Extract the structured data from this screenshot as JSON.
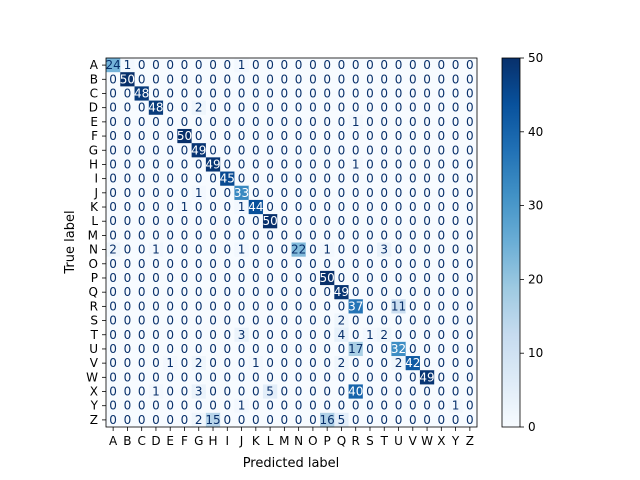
{
  "chart_data": {
    "type": "heatmap",
    "title": "",
    "xlabel": "Predicted label",
    "ylabel": "True label",
    "labels": [
      "A",
      "B",
      "C",
      "D",
      "E",
      "F",
      "G",
      "H",
      "I",
      "J",
      "K",
      "L",
      "M",
      "N",
      "O",
      "P",
      "Q",
      "R",
      "S",
      "T",
      "U",
      "V",
      "W",
      "X",
      "Y",
      "Z"
    ],
    "matrix": [
      [
        24,
        1,
        0,
        0,
        0,
        0,
        0,
        0,
        0,
        1,
        0,
        0,
        0,
        0,
        0,
        0,
        0,
        0,
        0,
        0,
        0,
        0,
        0,
        0,
        0,
        0
      ],
      [
        0,
        50,
        0,
        0,
        0,
        0,
        0,
        0,
        0,
        0,
        0,
        0,
        0,
        0,
        0,
        0,
        0,
        0,
        0,
        0,
        0,
        0,
        0,
        0,
        0,
        0
      ],
      [
        0,
        0,
        48,
        0,
        0,
        0,
        0,
        0,
        0,
        0,
        0,
        0,
        0,
        0,
        0,
        0,
        0,
        0,
        0,
        0,
        0,
        0,
        0,
        0,
        0,
        0
      ],
      [
        0,
        0,
        0,
        48,
        0,
        0,
        2,
        0,
        0,
        0,
        0,
        0,
        0,
        0,
        0,
        0,
        0,
        0,
        0,
        0,
        0,
        0,
        0,
        0,
        0,
        0
      ],
      [
        0,
        0,
        0,
        0,
        0,
        0,
        0,
        0,
        0,
        0,
        0,
        0,
        0,
        0,
        0,
        0,
        0,
        1,
        0,
        0,
        0,
        0,
        0,
        0,
        0,
        0
      ],
      [
        0,
        0,
        0,
        0,
        0,
        50,
        0,
        0,
        0,
        0,
        0,
        0,
        0,
        0,
        0,
        0,
        0,
        0,
        0,
        0,
        0,
        0,
        0,
        0,
        0,
        0
      ],
      [
        0,
        0,
        0,
        0,
        0,
        0,
        49,
        0,
        0,
        0,
        0,
        0,
        0,
        0,
        0,
        0,
        0,
        0,
        0,
        0,
        0,
        0,
        0,
        0,
        0,
        0
      ],
      [
        0,
        0,
        0,
        0,
        0,
        0,
        0,
        49,
        0,
        0,
        0,
        0,
        0,
        0,
        0,
        0,
        0,
        1,
        0,
        0,
        0,
        0,
        0,
        0,
        0,
        0
      ],
      [
        0,
        0,
        0,
        0,
        0,
        0,
        0,
        0,
        45,
        0,
        0,
        0,
        0,
        0,
        0,
        0,
        0,
        0,
        0,
        0,
        0,
        0,
        0,
        0,
        0,
        0
      ],
      [
        0,
        0,
        0,
        0,
        0,
        0,
        1,
        0,
        0,
        33,
        0,
        0,
        0,
        0,
        0,
        0,
        0,
        0,
        0,
        0,
        0,
        0,
        0,
        0,
        0,
        0
      ],
      [
        0,
        0,
        0,
        0,
        0,
        1,
        0,
        0,
        0,
        1,
        44,
        0,
        0,
        0,
        0,
        0,
        0,
        0,
        0,
        0,
        0,
        0,
        0,
        0,
        0,
        0
      ],
      [
        0,
        0,
        0,
        0,
        0,
        0,
        0,
        0,
        0,
        0,
        0,
        50,
        0,
        0,
        0,
        0,
        0,
        0,
        0,
        0,
        0,
        0,
        0,
        0,
        0,
        0
      ],
      [
        0,
        0,
        0,
        0,
        0,
        0,
        0,
        0,
        0,
        0,
        0,
        0,
        0,
        0,
        0,
        0,
        0,
        0,
        0,
        0,
        0,
        0,
        0,
        0,
        0,
        0
      ],
      [
        2,
        0,
        0,
        1,
        0,
        0,
        0,
        0,
        0,
        1,
        0,
        0,
        0,
        22,
        0,
        1,
        0,
        0,
        0,
        3,
        0,
        0,
        0,
        0,
        0,
        0
      ],
      [
        0,
        0,
        0,
        0,
        0,
        0,
        0,
        0,
        0,
        0,
        0,
        0,
        0,
        0,
        0,
        0,
        0,
        0,
        0,
        0,
        0,
        0,
        0,
        0,
        0,
        0
      ],
      [
        0,
        0,
        0,
        0,
        0,
        0,
        0,
        0,
        0,
        0,
        0,
        0,
        0,
        0,
        0,
        50,
        0,
        0,
        0,
        0,
        0,
        0,
        0,
        0,
        0,
        0
      ],
      [
        0,
        0,
        0,
        0,
        0,
        0,
        0,
        0,
        0,
        0,
        0,
        0,
        0,
        0,
        0,
        0,
        49,
        0,
        0,
        0,
        0,
        0,
        0,
        0,
        0,
        0
      ],
      [
        0,
        0,
        0,
        0,
        0,
        0,
        0,
        0,
        0,
        0,
        0,
        0,
        0,
        0,
        0,
        0,
        0,
        37,
        0,
        0,
        11,
        0,
        0,
        0,
        0,
        0
      ],
      [
        0,
        0,
        0,
        0,
        0,
        0,
        0,
        0,
        0,
        0,
        0,
        0,
        0,
        0,
        0,
        0,
        2,
        0,
        0,
        0,
        0,
        0,
        0,
        0,
        0,
        0
      ],
      [
        0,
        0,
        0,
        0,
        0,
        0,
        0,
        0,
        0,
        3,
        0,
        0,
        0,
        0,
        0,
        0,
        4,
        0,
        1,
        2,
        0,
        0,
        0,
        0,
        0,
        0
      ],
      [
        0,
        0,
        0,
        0,
        0,
        0,
        0,
        0,
        0,
        0,
        0,
        0,
        0,
        0,
        0,
        0,
        0,
        17,
        0,
        0,
        32,
        0,
        0,
        0,
        0,
        0
      ],
      [
        0,
        0,
        0,
        0,
        1,
        0,
        2,
        0,
        0,
        0,
        1,
        0,
        0,
        0,
        0,
        0,
        2,
        0,
        0,
        0,
        2,
        42,
        0,
        0,
        0,
        0
      ],
      [
        0,
        0,
        0,
        0,
        0,
        0,
        0,
        0,
        0,
        0,
        0,
        0,
        0,
        0,
        0,
        0,
        0,
        0,
        0,
        0,
        0,
        0,
        49,
        0,
        0,
        0
      ],
      [
        0,
        0,
        0,
        1,
        0,
        0,
        3,
        0,
        0,
        0,
        0,
        5,
        0,
        0,
        0,
        0,
        0,
        40,
        0,
        0,
        0,
        0,
        0,
        0,
        0,
        0
      ],
      [
        0,
        0,
        0,
        0,
        0,
        0,
        0,
        0,
        0,
        1,
        0,
        0,
        0,
        0,
        0,
        0,
        0,
        0,
        0,
        0,
        0,
        0,
        0,
        0,
        1,
        0
      ],
      [
        0,
        0,
        0,
        0,
        0,
        0,
        2,
        15,
        0,
        0,
        0,
        0,
        0,
        0,
        0,
        16,
        5,
        0,
        0,
        0,
        0,
        0,
        0,
        0,
        0,
        0
      ]
    ],
    "colorbar": {
      "colormap": "Blues",
      "min": 0,
      "max": 50,
      "ticks": [
        0,
        10,
        20,
        30,
        40,
        50
      ]
    }
  }
}
